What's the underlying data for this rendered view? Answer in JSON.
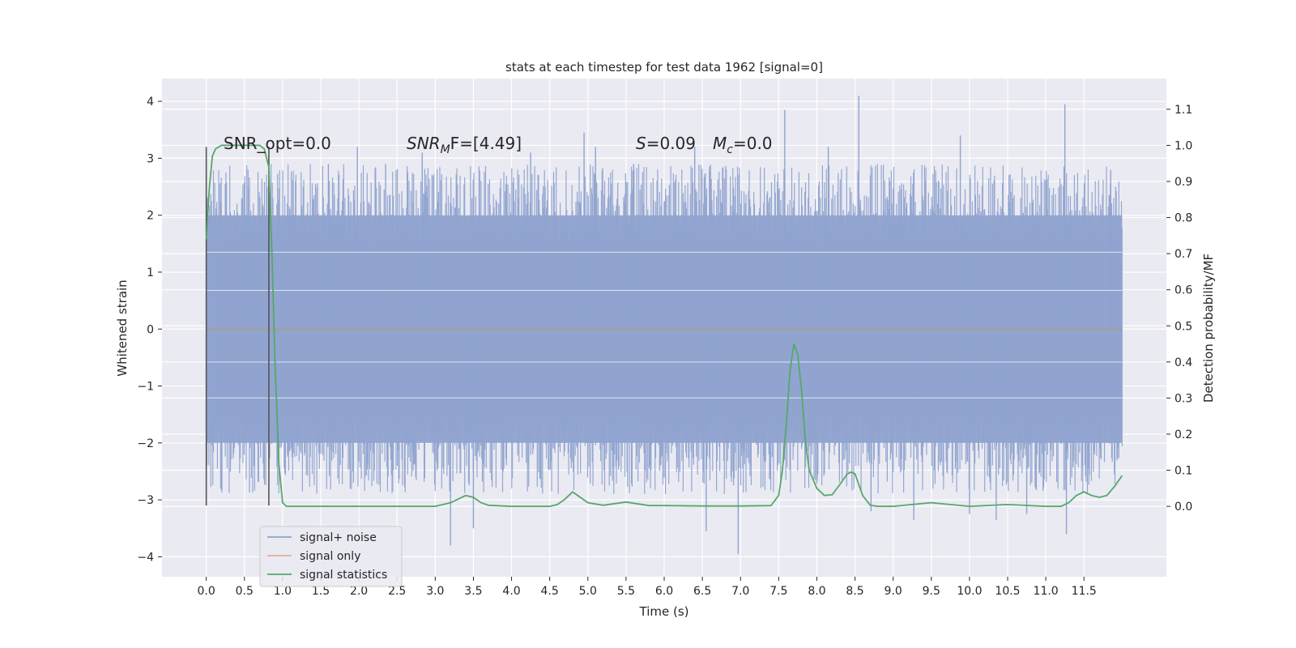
{
  "chart_data": {
    "type": "line",
    "title": "stats at each timestep for test data 1962 [signal=0]",
    "xlabel": "Time (s)",
    "ylabel": "Whitened strain",
    "ylabel_right": "Detection probability/MF",
    "xlim": [
      -0.58,
      12.58
    ],
    "ylim": [
      -4.35,
      4.4
    ],
    "ylim_right": [
      -0.195,
      1.185
    ],
    "x_ticks": [
      "0.0",
      "0.5",
      "1.0",
      "1.5",
      "2.0",
      "2.5",
      "3.0",
      "3.5",
      "4.0",
      "4.5",
      "5.0",
      "5.5",
      "6.0",
      "6.5",
      "7.0",
      "7.5",
      "8.0",
      "8.5",
      "9.0",
      "9.5",
      "10.0",
      "10.5",
      "11.0",
      "11.5"
    ],
    "y_ticks": [
      "4",
      "3",
      "2",
      "1",
      "0",
      "−1",
      "−2",
      "−3",
      "−4"
    ],
    "y_ticks_right": [
      "1.1",
      "1.0",
      "0.9",
      "0.8",
      "0.7",
      "0.6",
      "0.5",
      "0.4",
      "0.3",
      "0.2",
      "0.1",
      "0.0"
    ],
    "grid": true,
    "legend_position": "lower-left",
    "annotations": {
      "snr_opt": "SNR_opt=0.0",
      "snr_mf_base": "SNR",
      "snr_mf_sub": "M",
      "snr_mf_rest": "F=[4.49]",
      "s_var": "S",
      "s_val": "=0.09",
      "mc_base": "M",
      "mc_sub": "c",
      "mc_val": "=0.0"
    },
    "vlines": [
      0.0,
      0.82
    ],
    "noise_spikes": [
      {
        "x": 0.55,
        "y": 2.5
      },
      {
        "x": 1.17,
        "y": 2.6
      },
      {
        "x": 1.6,
        "y": 2.9
      },
      {
        "x": 1.98,
        "y": 3.2
      },
      {
        "x": 2.35,
        "y": 2.9
      },
      {
        "x": 2.83,
        "y": 3.1
      },
      {
        "x": 3.2,
        "y": -3.8
      },
      {
        "x": 3.5,
        "y": -3.5
      },
      {
        "x": 4.25,
        "y": 3.1
      },
      {
        "x": 4.95,
        "y": 3.45
      },
      {
        "x": 5.1,
        "y": 3.2
      },
      {
        "x": 5.6,
        "y": 2.9
      },
      {
        "x": 6.4,
        "y": 3.2
      },
      {
        "x": 6.55,
        "y": -3.55
      },
      {
        "x": 6.97,
        "y": -3.95
      },
      {
        "x": 7.58,
        "y": 3.85
      },
      {
        "x": 8.15,
        "y": 3.2
      },
      {
        "x": 8.55,
        "y": 4.1
      },
      {
        "x": 8.71,
        "y": -3.2
      },
      {
        "x": 9.27,
        "y": -3.35
      },
      {
        "x": 9.88,
        "y": 3.4
      },
      {
        "x": 10.0,
        "y": -3.25
      },
      {
        "x": 10.35,
        "y": -3.35
      },
      {
        "x": 10.75,
        "y": -3.25
      },
      {
        "x": 11.25,
        "y": 3.95
      },
      {
        "x": 11.27,
        "y": -3.6
      },
      {
        "x": 11.85,
        "y": 2.8
      }
    ],
    "series": [
      {
        "name": "signal+ noise",
        "color": "#8fa3cf",
        "x_range": [
          0.0,
          12.0
        ],
        "band": [
          -2.0,
          2.0
        ],
        "values": []
      },
      {
        "name": "signal only",
        "color": "#dd8452",
        "x": [
          0.0,
          12.0
        ],
        "values": [
          0.0,
          0.0
        ]
      },
      {
        "name": "signal statistics",
        "color": "#55a868",
        "axis": "right",
        "x": [
          0.0,
          0.04,
          0.08,
          0.12,
          0.2,
          0.3,
          0.45,
          0.6,
          0.7,
          0.76,
          0.82,
          0.86,
          0.9,
          0.95,
          1.0,
          1.05,
          1.1,
          1.2,
          1.5,
          2.0,
          2.5,
          3.0,
          3.2,
          3.3,
          3.4,
          3.5,
          3.6,
          3.7,
          4.0,
          4.5,
          4.6,
          4.7,
          4.8,
          4.9,
          5.0,
          5.2,
          5.5,
          5.8,
          6.0,
          6.5,
          7.0,
          7.4,
          7.5,
          7.55,
          7.6,
          7.65,
          7.7,
          7.75,
          7.8,
          7.85,
          7.9,
          8.0,
          8.1,
          8.2,
          8.3,
          8.4,
          8.45,
          8.5,
          8.6,
          8.7,
          8.8,
          9.0,
          9.5,
          10.0,
          10.5,
          11.0,
          11.2,
          11.3,
          11.4,
          11.5,
          11.6,
          11.7,
          11.8,
          11.9,
          12.0
        ],
        "values": [
          0.74,
          0.88,
          0.97,
          0.99,
          1.0,
          1.0,
          1.0,
          1.0,
          1.0,
          0.99,
          0.94,
          0.7,
          0.4,
          0.12,
          0.01,
          0.0,
          0.0,
          0.0,
          0.0,
          0.0,
          0.0,
          0.0,
          0.01,
          0.02,
          0.03,
          0.025,
          0.01,
          0.003,
          0.0,
          0.0,
          0.005,
          0.02,
          0.04,
          0.025,
          0.01,
          0.003,
          0.012,
          0.002,
          0.002,
          0.001,
          0.001,
          0.002,
          0.03,
          0.1,
          0.23,
          0.38,
          0.45,
          0.42,
          0.32,
          0.18,
          0.1,
          0.05,
          0.03,
          0.032,
          0.06,
          0.09,
          0.095,
          0.09,
          0.03,
          0.003,
          0.0,
          0.0,
          0.01,
          0.0,
          0.005,
          0.0,
          0.0,
          0.01,
          0.03,
          0.04,
          0.03,
          0.025,
          0.03,
          0.055,
          0.085
        ]
      }
    ]
  }
}
